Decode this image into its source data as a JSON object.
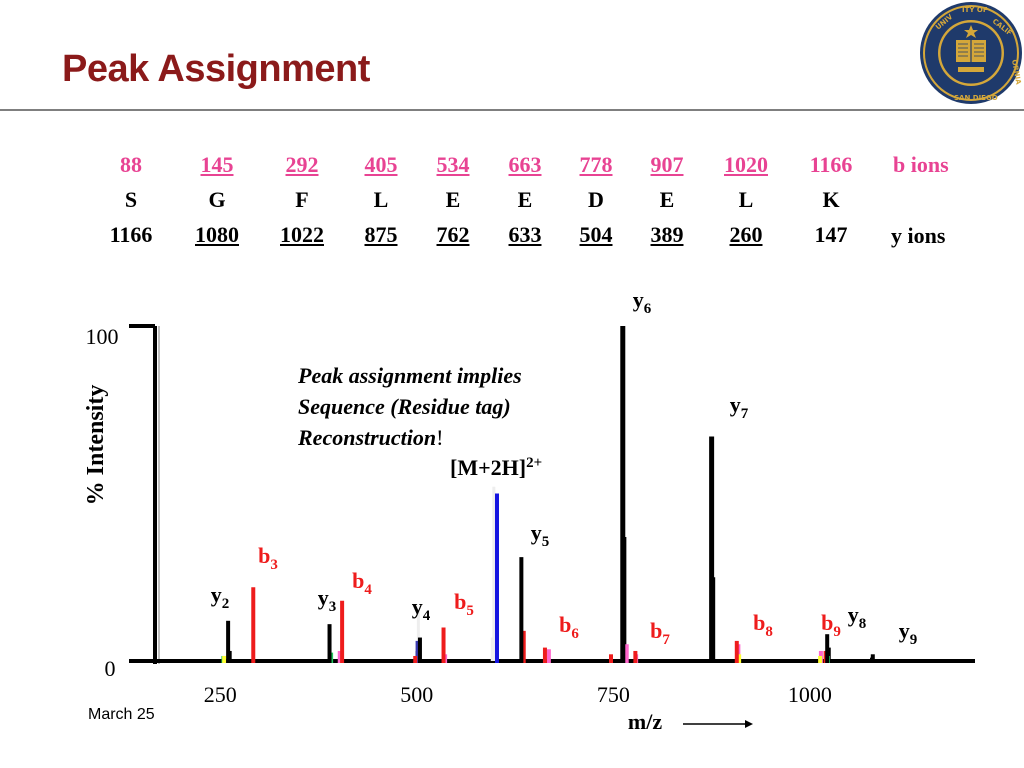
{
  "slide": {
    "title": "Peak Assignment",
    "footer": "March 25",
    "annotation_lines": [
      "Peak assignment implies",
      "Sequence (Residue tag)",
      "Reconstruction"
    ],
    "annotation_suffix": "!",
    "seal_lettering": "UNIVERSITY OF CALIFORNIA SAN DIEGO"
  },
  "sequence_table": {
    "b_label": "b ions",
    "y_label": "y ions",
    "columns": [
      {
        "b": "88",
        "residue": "S",
        "y": "1166"
      },
      {
        "b": "145",
        "residue": "G",
        "y": "1080"
      },
      {
        "b": "292",
        "residue": "F",
        "y": "1022"
      },
      {
        "b": "405",
        "residue": "L",
        "y": "875"
      },
      {
        "b": "534",
        "residue": "E",
        "y": "762"
      },
      {
        "b": "663",
        "residue": "E",
        "y": "633"
      },
      {
        "b": "778",
        "residue": "D",
        "y": "504"
      },
      {
        "b": "907",
        "residue": "E",
        "y": "389"
      },
      {
        "b": "1020",
        "residue": "L",
        "y": "260"
      },
      {
        "b": "1166",
        "residue": "K",
        "y": "147"
      }
    ]
  },
  "chart_data": {
    "type": "bar",
    "xlabel": "m/z",
    "ylabel": "% Intensity",
    "xticks": [
      250,
      500,
      750,
      1000
    ],
    "yticks": [
      0,
      100
    ],
    "xlim": [
      167,
      1210
    ],
    "ylim": [
      0,
      100
    ],
    "colors": {
      "y_ion": "#000000",
      "b_ion": "#ee1c1c",
      "precursor": "#1414e0",
      "b_label": "#ee1c1c",
      "minor": [
        "#22c55e",
        "#ff66cc",
        "#ffff33",
        "#3a3ab0"
      ]
    },
    "peaks": [
      {
        "mz": 260,
        "intensity": 12,
        "kind": "y_ion",
        "label": "y",
        "sub": "2"
      },
      {
        "mz": 292,
        "intensity": 22,
        "kind": "b_ion",
        "label": "b",
        "sub": "3"
      },
      {
        "mz": 389,
        "intensity": 11,
        "kind": "y_ion",
        "label": "y",
        "sub": "3"
      },
      {
        "mz": 405,
        "intensity": 18,
        "kind": "b_ion",
        "label": "b",
        "sub": "4"
      },
      {
        "mz": 504,
        "intensity": 7,
        "kind": "y_ion",
        "label": "y",
        "sub": "4"
      },
      {
        "mz": 534,
        "intensity": 10,
        "kind": "b_ion",
        "label": "b",
        "sub": "5"
      },
      {
        "mz": 602,
        "intensity": 50,
        "kind": "precursor",
        "label": "[M+2H]",
        "sup": "2+"
      },
      {
        "mz": 633,
        "intensity": 31,
        "kind": "y_ion",
        "label": "y",
        "sub": "5"
      },
      {
        "mz": 663,
        "intensity": 4,
        "kind": "b_ion",
        "label": "b",
        "sub": "6"
      },
      {
        "mz": 762,
        "intensity": 100,
        "kind": "y_ion",
        "label": "y",
        "sub": "6"
      },
      {
        "mz": 778,
        "intensity": 3,
        "kind": "b_ion",
        "label": "b",
        "sub": "7"
      },
      {
        "mz": 875,
        "intensity": 67,
        "kind": "y_ion",
        "label": "y",
        "sub": "7"
      },
      {
        "mz": 907,
        "intensity": 6,
        "kind": "b_ion",
        "label": "b",
        "sub": "8"
      },
      {
        "mz": 1020,
        "intensity": 3,
        "kind": "b_ion",
        "label": "b",
        "sub": "9"
      },
      {
        "mz": 1022,
        "intensity": 8,
        "kind": "y_ion",
        "label": "y",
        "sub": "8"
      },
      {
        "mz": 1080,
        "intensity": 2,
        "kind": "y_ion",
        "label": "y",
        "sub": "9"
      }
    ],
    "minor_peaks": [
      {
        "mz": 254,
        "intensity": 1.5,
        "color": "#22c55e"
      },
      {
        "mz": 255,
        "intensity": 1.5,
        "color": "#ffff33"
      },
      {
        "mz": 262,
        "intensity": 3,
        "color": "#000000"
      },
      {
        "mz": 391,
        "intensity": 2.5,
        "color": "#22c55e"
      },
      {
        "mz": 402,
        "intensity": 3,
        "color": "#ff66cc"
      },
      {
        "mz": 501,
        "intensity": 3,
        "color": "#000000"
      },
      {
        "mz": 501,
        "intensity": 6,
        "color": "#3a3ab0"
      },
      {
        "mz": 498,
        "intensity": 1.5,
        "color": "#ee1c1c"
      },
      {
        "mz": 536,
        "intensity": 2,
        "color": "#ff66cc"
      },
      {
        "mz": 634,
        "intensity": 2,
        "color": "#ee1c1c"
      },
      {
        "mz": 636,
        "intensity": 9,
        "color": "#ee1c1c"
      },
      {
        "mz": 668,
        "intensity": 3.5,
        "color": "#ff66cc"
      },
      {
        "mz": 747,
        "intensity": 2,
        "color": "#ee1c1c"
      },
      {
        "mz": 764,
        "intensity": 37,
        "color": "#000000"
      },
      {
        "mz": 767,
        "intensity": 5,
        "color": "#ff66cc"
      },
      {
        "mz": 779,
        "intensity": 2,
        "color": "#ff66cc"
      },
      {
        "mz": 877,
        "intensity": 25,
        "color": "#000000"
      },
      {
        "mz": 909,
        "intensity": 5,
        "color": "#ff66cc"
      },
      {
        "mz": 910,
        "intensity": 2,
        "color": "#ffff33"
      },
      {
        "mz": 1014,
        "intensity": 3,
        "color": "#ff66cc"
      },
      {
        "mz": 1013,
        "intensity": 1.5,
        "color": "#ffff33"
      },
      {
        "mz": 1024,
        "intensity": 4,
        "color": "#000000"
      },
      {
        "mz": 1023,
        "intensity": 1.5,
        "color": "#22c55e"
      },
      {
        "mz": 1079,
        "intensity": 1,
        "color": "#000000"
      }
    ]
  }
}
